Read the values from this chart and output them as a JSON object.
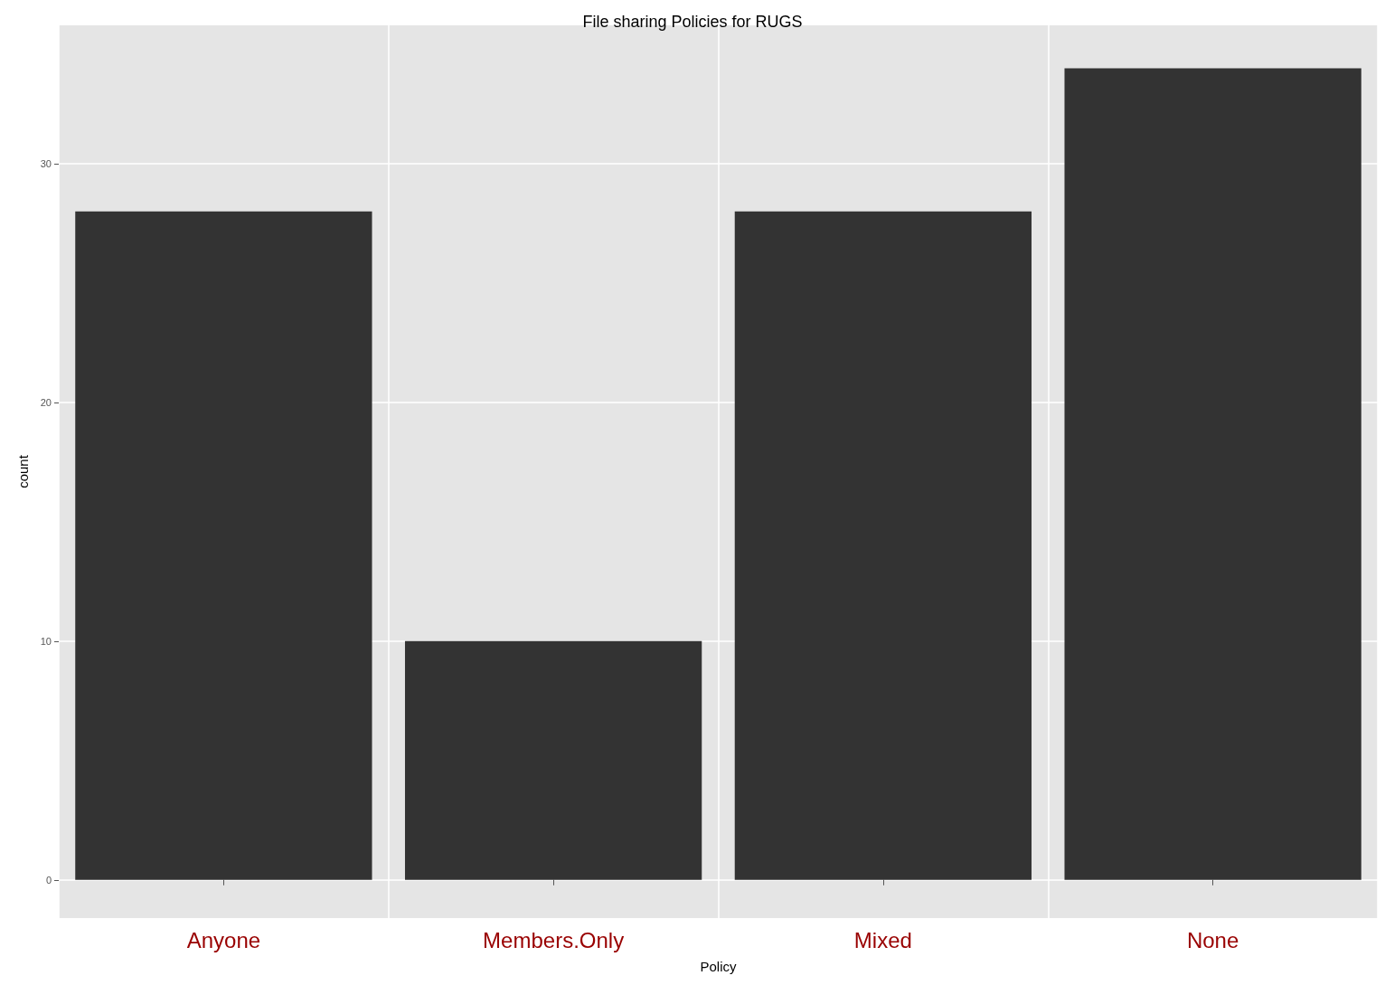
{
  "chart_data": {
    "type": "bar",
    "title": "File sharing Policies for RUGS",
    "xlabel": "Policy",
    "ylabel": "count",
    "categories": [
      "Anyone",
      "Members.Only",
      "Mixed",
      "None"
    ],
    "values": [
      28,
      10,
      28,
      34
    ],
    "color": "#333333",
    "ylim": [
      -1.6,
      35.8
    ],
    "yticks": [
      0,
      10,
      20,
      30
    ],
    "grid": true
  }
}
